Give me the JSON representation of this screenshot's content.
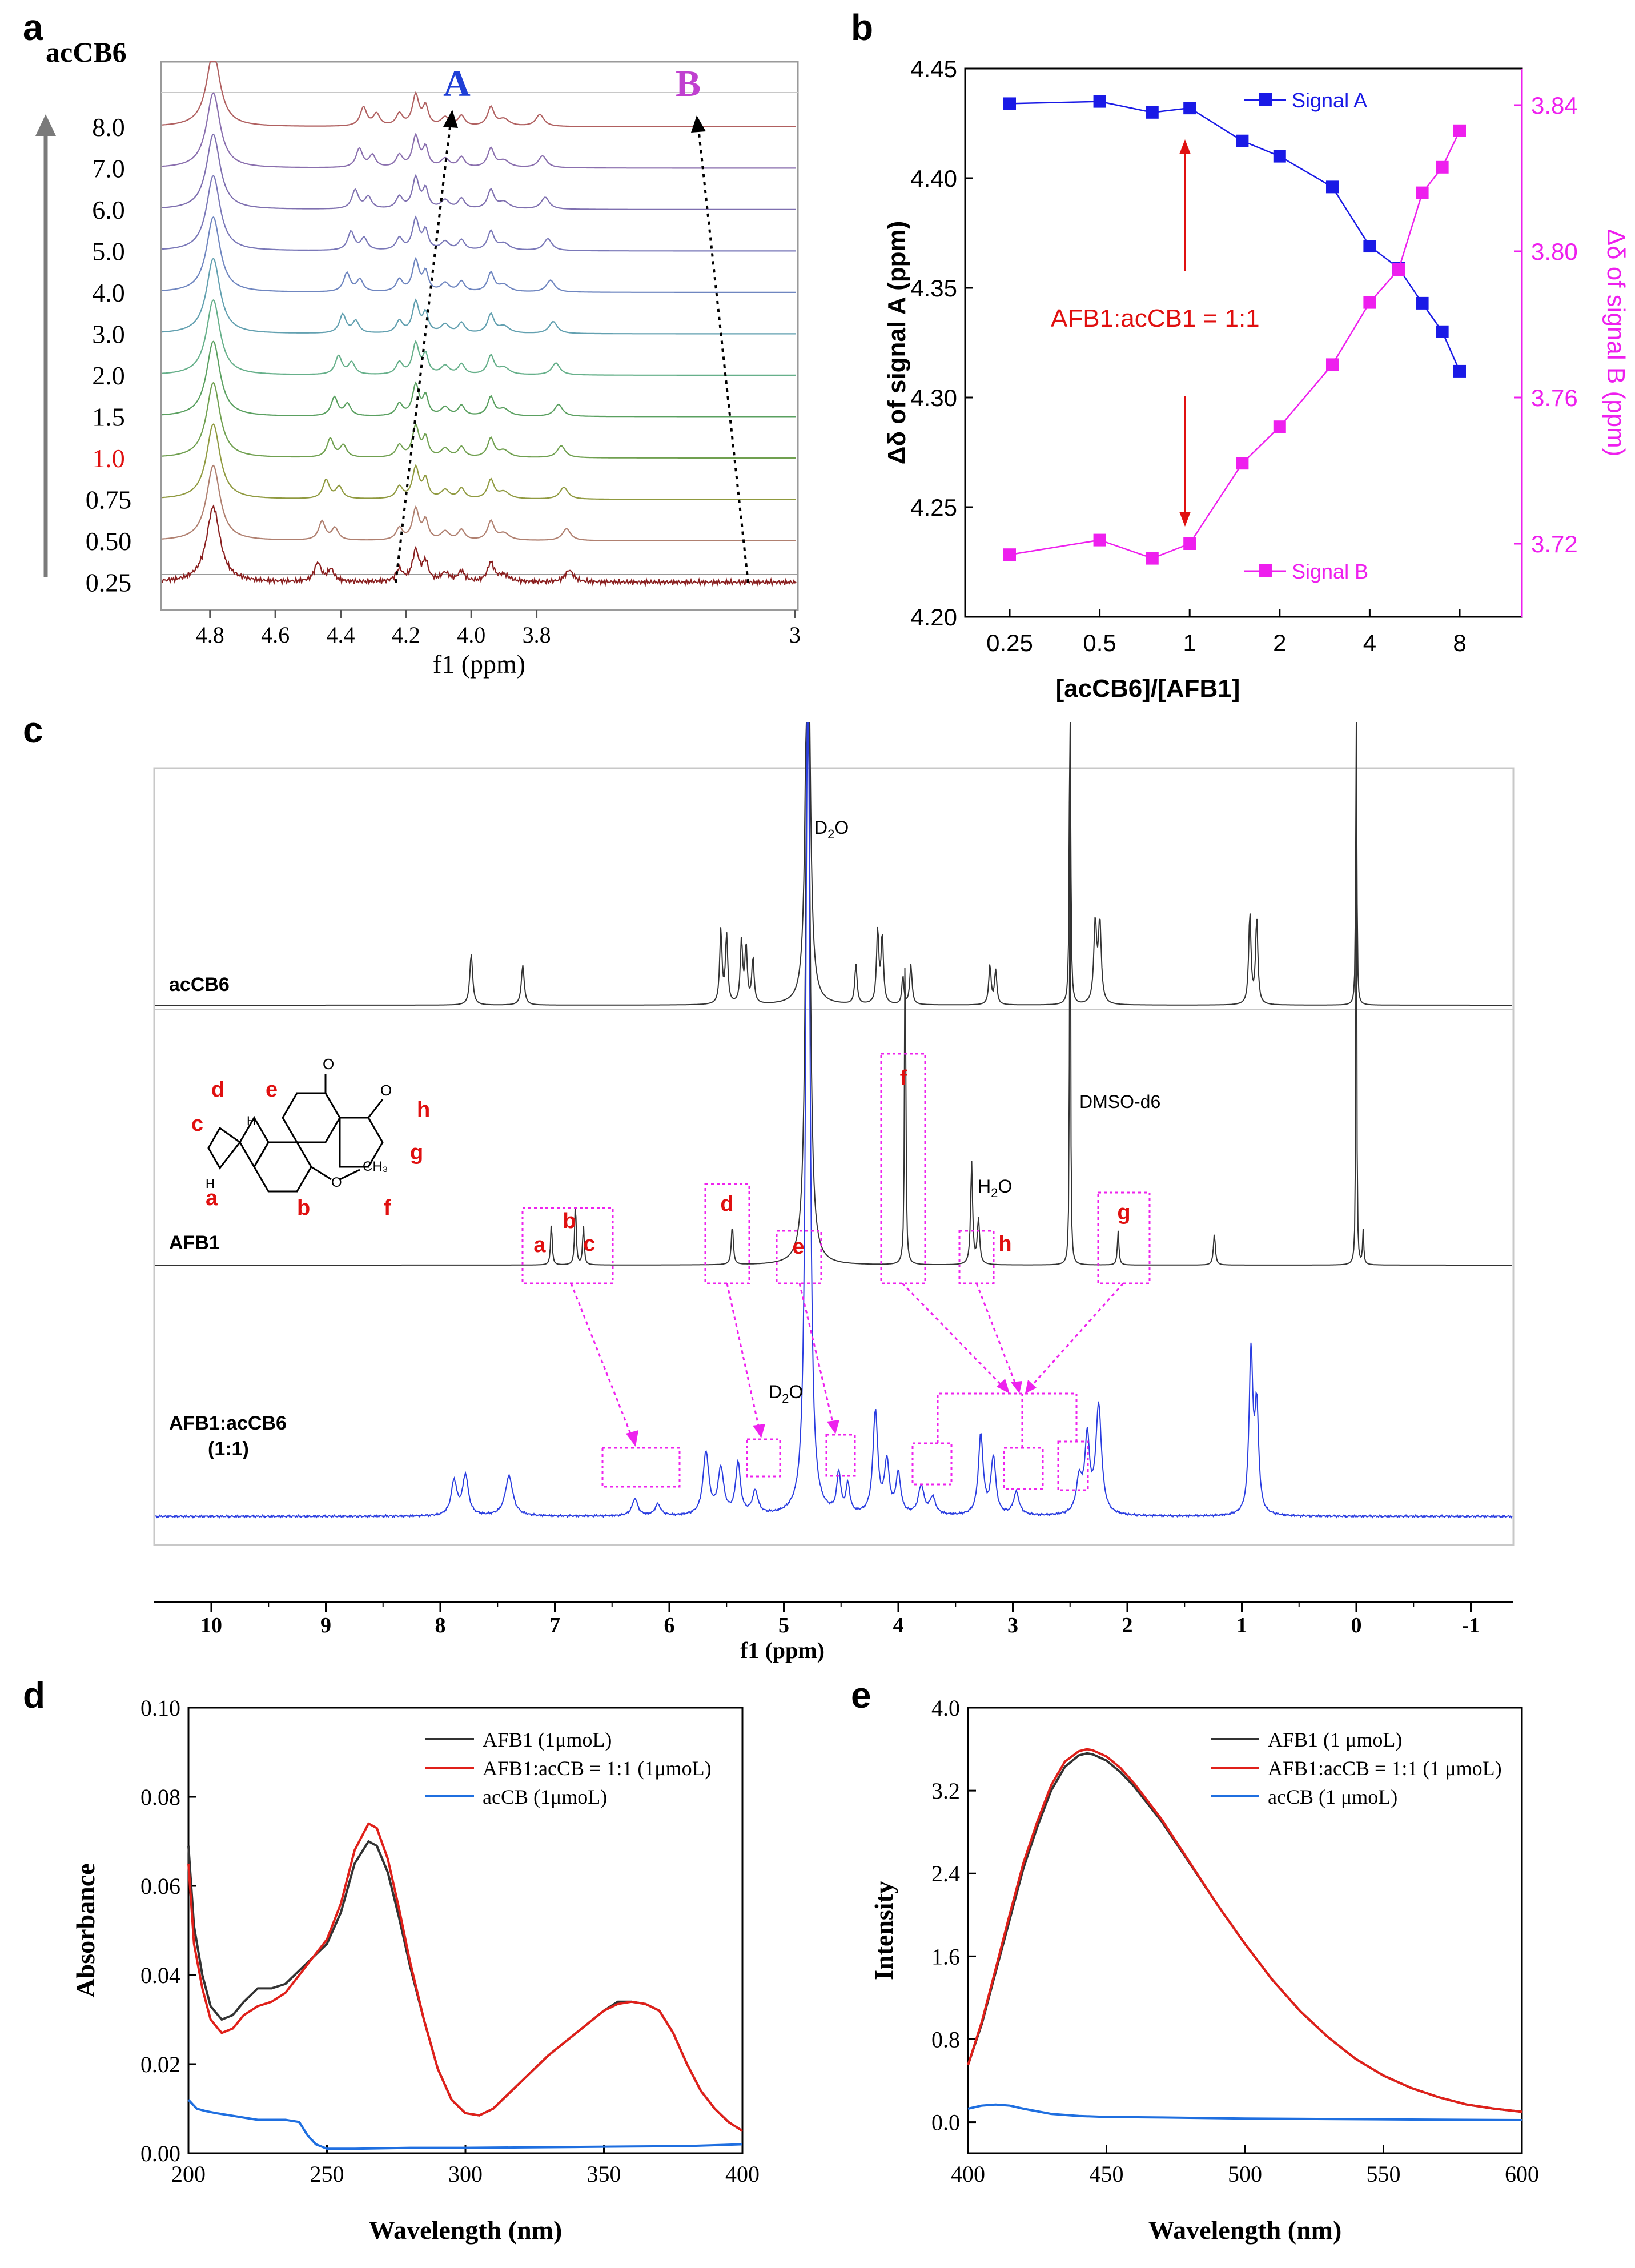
{
  "panels": {
    "a": "a",
    "b": "b",
    "c": "c",
    "d": "d",
    "e": "e"
  },
  "chart_data": [
    {
      "id": "a",
      "type": "line",
      "title": "",
      "xlabel": "f1 (ppm)",
      "xlim": [
        4.95,
        3.0
      ],
      "x_ticks": [
        "4.8",
        "4.6",
        "4.4",
        "4.2",
        "4.0",
        "3.8",
        "3"
      ],
      "stack_title": "acCB6",
      "stack_labels": [
        "8.0",
        "7.0",
        "6.0",
        "5.0",
        "4.0",
        "3.0",
        "2.0",
        "1.5",
        "1.0",
        "0.75",
        "0.50",
        "0.25"
      ],
      "highlight_label": "1.0",
      "annotations": [
        "A",
        "B"
      ],
      "colors": {
        "A": "#1f3fd6",
        "B": "#c040d0",
        "highlight": "#e01010"
      }
    },
    {
      "id": "b",
      "type": "line",
      "xlabel": "[acCB6]/[AFB1]",
      "ylabel": "Δδ of signal A (ppm)",
      "y2label": "Δδ of signal B (ppm)",
      "x_scale": "log2",
      "x_ticks": [
        "0.25",
        "0.5",
        "1",
        "2",
        "4",
        "8"
      ],
      "ylim": [
        4.2,
        4.45
      ],
      "y_ticks": [
        "4.20",
        "4.25",
        "4.30",
        "4.35",
        "4.40",
        "4.45"
      ],
      "y2lim": [
        3.7,
        3.85
      ],
      "y2_ticks": [
        "3.72",
        "3.76",
        "3.80",
        "3.84"
      ],
      "annotation": "AFB1:acCB1 =  1:1",
      "series": [
        {
          "name": "Signal A",
          "axis": "left",
          "color": "#1a1ae6",
          "x": [
            0.25,
            0.5,
            0.75,
            1,
            1.5,
            2,
            3,
            4,
            5,
            6,
            7,
            8
          ],
          "y": [
            4.434,
            4.435,
            4.43,
            4.432,
            4.417,
            4.41,
            4.396,
            4.369,
            4.359,
            4.343,
            4.33,
            4.312
          ]
        },
        {
          "name": "Signal B",
          "axis": "right",
          "color": "#ee1fee",
          "x": [
            0.25,
            0.5,
            0.75,
            1,
            1.5,
            2,
            3,
            4,
            5,
            6,
            7,
            8
          ],
          "y": [
            3.717,
            3.721,
            3.716,
            3.72,
            3.742,
            3.752,
            3.769,
            3.786,
            3.795,
            3.816,
            3.823,
            3.833
          ]
        }
      ]
    },
    {
      "id": "c",
      "type": "line",
      "xlabel": "f1 (ppm)",
      "x_ticks": [
        "10",
        "9",
        "8",
        "7",
        "6",
        "5",
        "4",
        "3",
        "2",
        "1",
        "0",
        "-1"
      ],
      "series_labels": [
        "acCB6",
        "AFB1",
        "AFB1:acCB6",
        "(1:1)"
      ],
      "solvent_labels": [
        "D",
        "2",
        "O",
        "DMSO-d6",
        "H",
        "2",
        "O"
      ],
      "structure_labels": [
        "a",
        "b",
        "c",
        "d",
        "e",
        "f",
        "g",
        "h"
      ],
      "box_labels": [
        "a",
        "b",
        "c",
        "d",
        "e",
        "f",
        "h",
        "g"
      ],
      "colors": {
        "acCB6": "#333333",
        "AFB1": "#333333",
        "complex": "#2a3de0",
        "box": "#ee22ee",
        "label": "#e01010"
      }
    },
    {
      "id": "d",
      "type": "line",
      "xlabel": "Wavelength (nm)",
      "ylabel": "Absorbance",
      "xlim": [
        200,
        400
      ],
      "ylim": [
        0,
        0.1
      ],
      "x_ticks": [
        "200",
        "250",
        "300",
        "350",
        "400"
      ],
      "y_ticks": [
        "0.00",
        "0.02",
        "0.04",
        "0.06",
        "0.08",
        "0.10"
      ],
      "legend": "top-right",
      "series": [
        {
          "name": "AFB1 (1μmoL)",
          "color": "#333333",
          "x": [
            200,
            202,
            205,
            208,
            212,
            216,
            220,
            225,
            230,
            235,
            240,
            245,
            250,
            255,
            260,
            265,
            268,
            272,
            276,
            280,
            285,
            290,
            295,
            300,
            305,
            310,
            315,
            320,
            330,
            340,
            350,
            355,
            360,
            365,
            370,
            375,
            380,
            385,
            390,
            395,
            400
          ],
          "y": [
            0.069,
            0.051,
            0.04,
            0.033,
            0.03,
            0.031,
            0.034,
            0.037,
            0.037,
            0.038,
            0.041,
            0.044,
            0.047,
            0.054,
            0.065,
            0.07,
            0.069,
            0.063,
            0.053,
            0.042,
            0.03,
            0.019,
            0.012,
            0.009,
            0.0085,
            0.01,
            0.013,
            0.016,
            0.022,
            0.027,
            0.032,
            0.034,
            0.034,
            0.0335,
            0.032,
            0.027,
            0.02,
            0.014,
            0.01,
            0.007,
            0.005
          ]
        },
        {
          "name": "AFB1:acCB = 1:1 (1μmoL)",
          "color": "#e0201a",
          "x": [
            200,
            202,
            205,
            208,
            212,
            216,
            220,
            225,
            230,
            235,
            240,
            245,
            250,
            255,
            260,
            265,
            268,
            272,
            276,
            280,
            285,
            290,
            295,
            300,
            305,
            310,
            315,
            320,
            330,
            340,
            350,
            355,
            360,
            365,
            370,
            375,
            380,
            385,
            390,
            395,
            400
          ],
          "y": [
            0.065,
            0.047,
            0.037,
            0.03,
            0.027,
            0.028,
            0.031,
            0.033,
            0.034,
            0.036,
            0.04,
            0.044,
            0.048,
            0.056,
            0.068,
            0.074,
            0.073,
            0.066,
            0.055,
            0.043,
            0.03,
            0.019,
            0.012,
            0.009,
            0.0085,
            0.01,
            0.013,
            0.016,
            0.022,
            0.027,
            0.032,
            0.0335,
            0.034,
            0.0335,
            0.032,
            0.027,
            0.02,
            0.014,
            0.01,
            0.007,
            0.005
          ]
        },
        {
          "name": "acCB (1μmoL)",
          "color": "#1f6fe0",
          "x": [
            200,
            203,
            206,
            210,
            215,
            220,
            225,
            230,
            235,
            240,
            243,
            246,
            250,
            260,
            280,
            300,
            320,
            340,
            360,
            380,
            400
          ],
          "y": [
            0.012,
            0.01,
            0.0095,
            0.009,
            0.0085,
            0.008,
            0.0075,
            0.0075,
            0.0075,
            0.007,
            0.004,
            0.002,
            0.001,
            0.001,
            0.0012,
            0.0012,
            0.0013,
            0.0014,
            0.0015,
            0.0016,
            0.002
          ]
        }
      ]
    },
    {
      "id": "e",
      "type": "line",
      "xlabel": "Wavelength (nm)",
      "ylabel": "Intensity",
      "xlim": [
        400,
        600
      ],
      "ylim": [
        -0.3,
        4.0
      ],
      "x_ticks": [
        "400",
        "450",
        "500",
        "550",
        "600"
      ],
      "y_ticks": [
        "0.0",
        "0.8",
        "1.6",
        "2.4",
        "3.2",
        "4.0"
      ],
      "legend": "top-right",
      "series": [
        {
          "name": "AFB1 (1 μmoL)",
          "color": "#333333",
          "x": [
            400,
            405,
            410,
            415,
            420,
            425,
            430,
            435,
            440,
            443,
            445,
            450,
            455,
            460,
            470,
            480,
            490,
            500,
            510,
            520,
            530,
            540,
            550,
            560,
            570,
            580,
            590,
            600
          ],
          "y": [
            0.55,
            0.95,
            1.45,
            1.95,
            2.45,
            2.85,
            3.2,
            3.43,
            3.54,
            3.56,
            3.55,
            3.49,
            3.38,
            3.24,
            2.9,
            2.5,
            2.1,
            1.72,
            1.37,
            1.07,
            0.82,
            0.61,
            0.45,
            0.33,
            0.24,
            0.17,
            0.13,
            0.1
          ]
        },
        {
          "name": "AFB1:acCB = 1:1 (1 μmoL)",
          "color": "#e0201a",
          "x": [
            400,
            405,
            410,
            415,
            420,
            425,
            430,
            435,
            440,
            443,
            445,
            450,
            455,
            460,
            470,
            480,
            490,
            500,
            510,
            520,
            530,
            540,
            550,
            560,
            570,
            580,
            590,
            600
          ],
          "y": [
            0.55,
            0.97,
            1.48,
            2.0,
            2.5,
            2.9,
            3.25,
            3.48,
            3.58,
            3.6,
            3.59,
            3.53,
            3.42,
            3.27,
            2.92,
            2.51,
            2.1,
            1.72,
            1.37,
            1.07,
            0.82,
            0.61,
            0.45,
            0.33,
            0.24,
            0.17,
            0.13,
            0.1
          ]
        },
        {
          "name": "acCB (1 μmoL)",
          "color": "#1f6fe0",
          "x": [
            400,
            405,
            410,
            415,
            420,
            430,
            440,
            450,
            470,
            500,
            530,
            560,
            600
          ],
          "y": [
            0.13,
            0.16,
            0.17,
            0.16,
            0.13,
            0.08,
            0.06,
            0.05,
            0.045,
            0.035,
            0.03,
            0.025,
            0.02
          ]
        }
      ]
    }
  ]
}
